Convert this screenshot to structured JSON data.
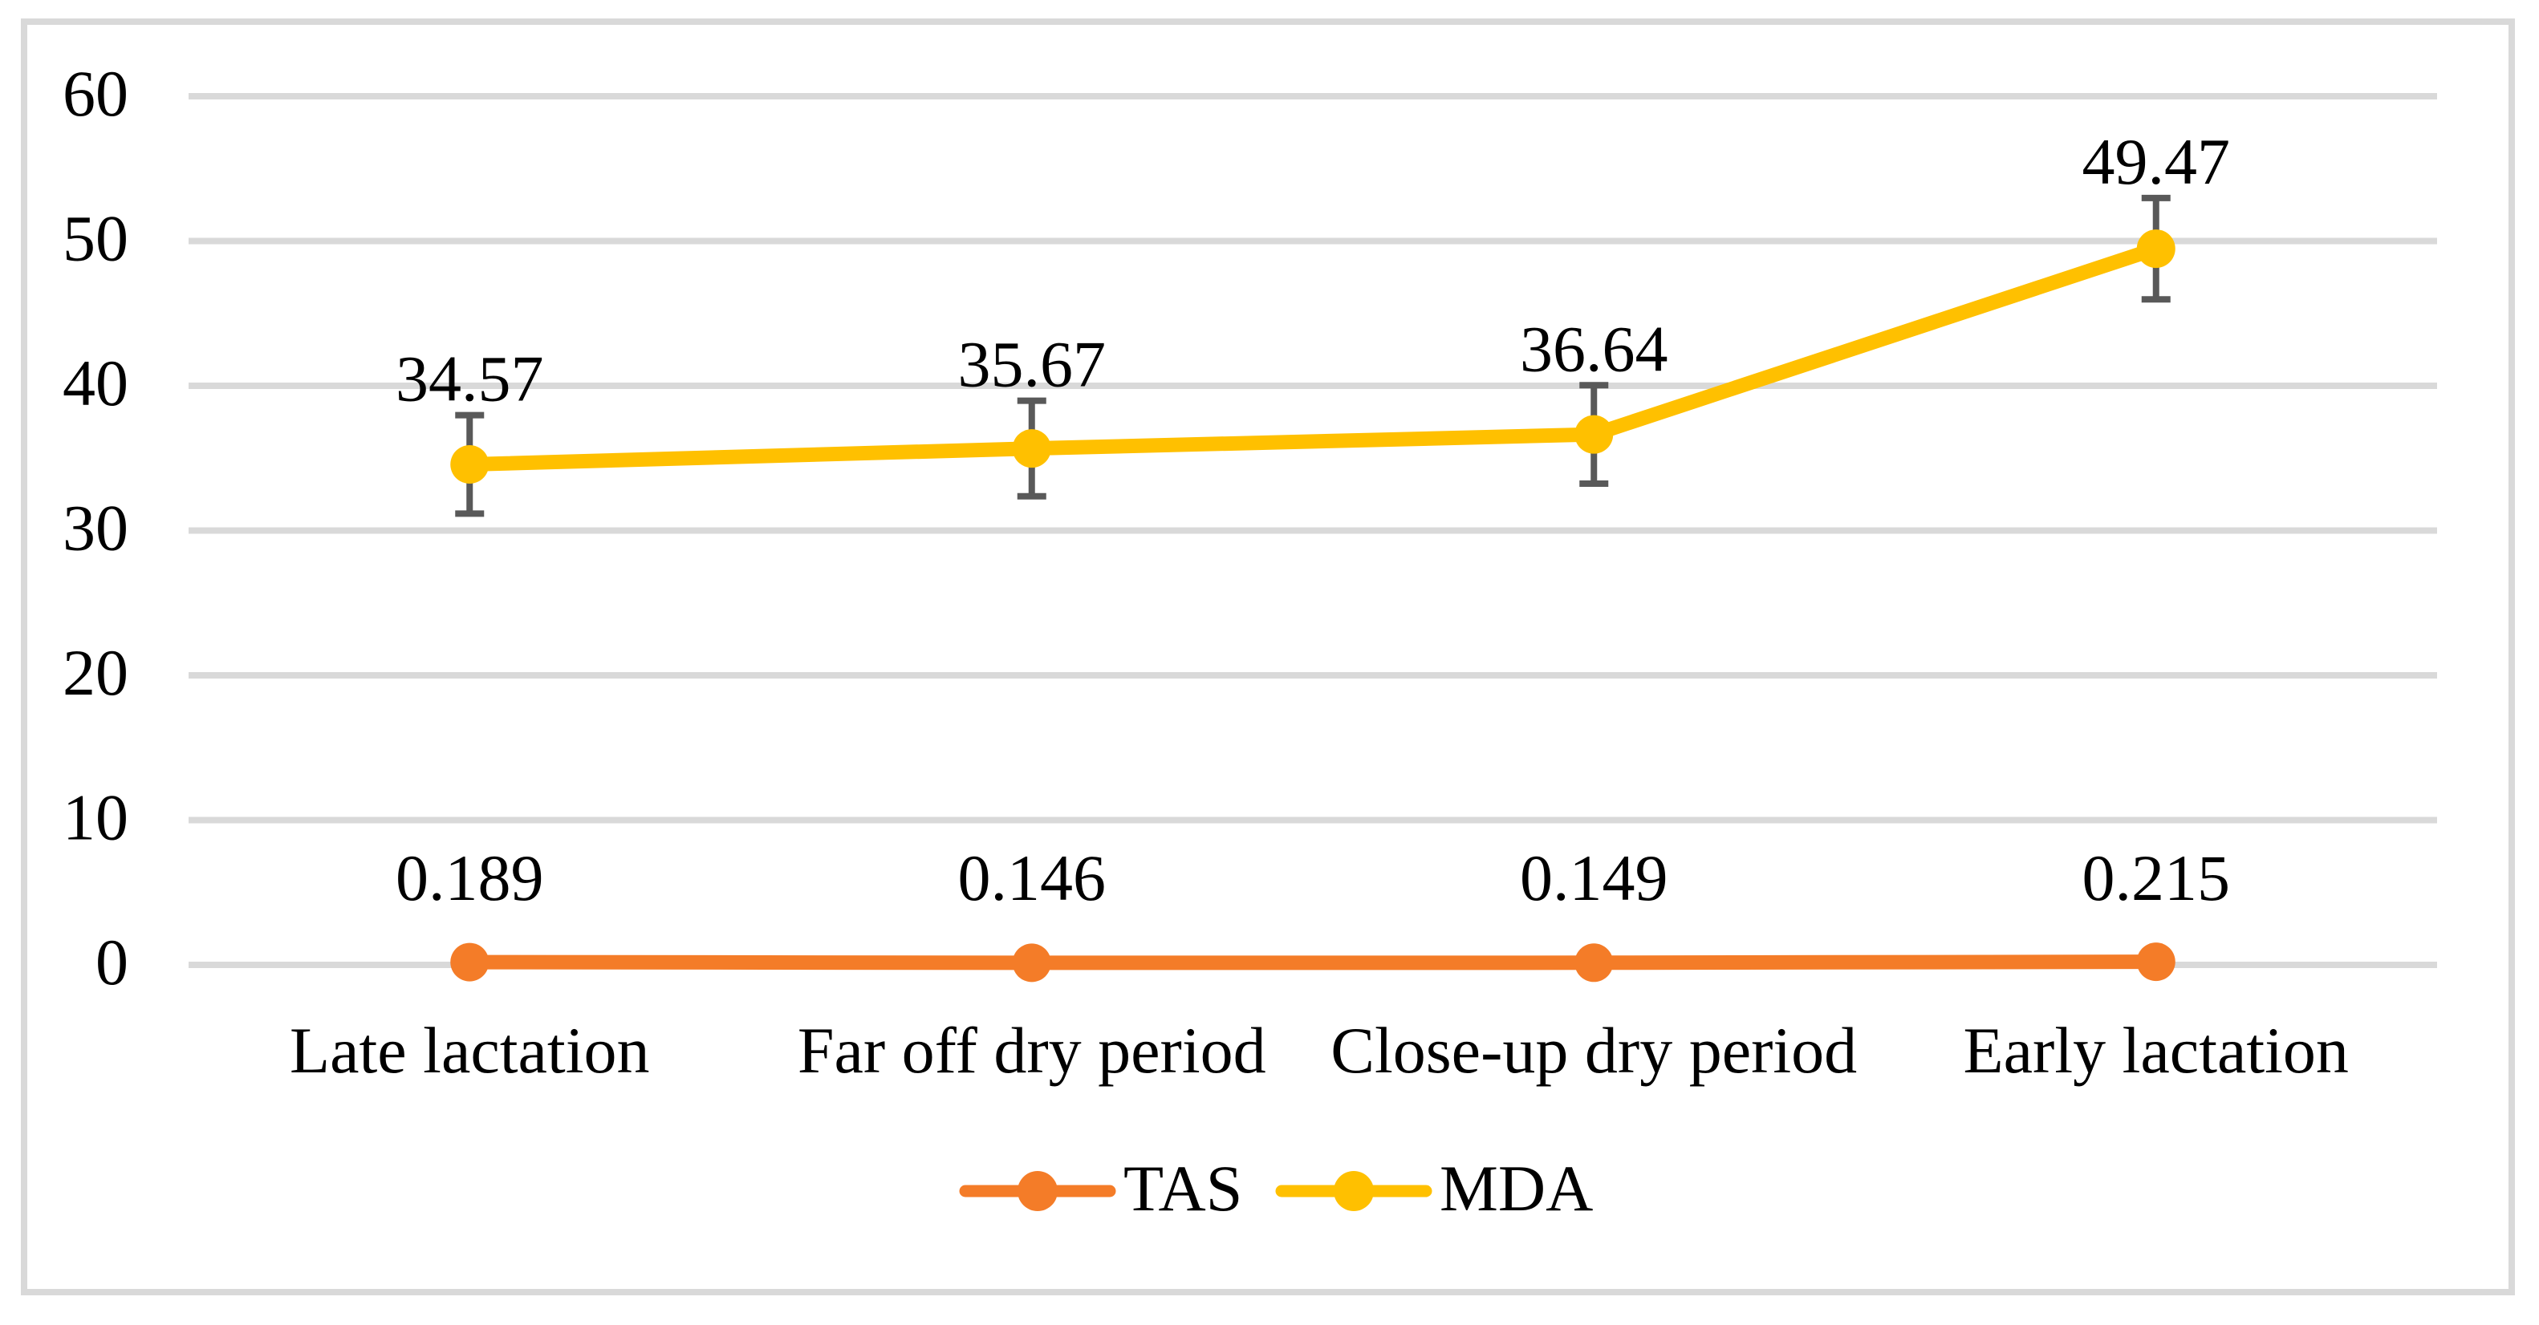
{
  "chart_data": {
    "type": "line",
    "title": "",
    "xlabel": "",
    "ylabel": "",
    "categories": [
      "Late lactation",
      "Far off dry period",
      "Close-up dry period",
      "Early lactation"
    ],
    "series": [
      {
        "name": "TAS",
        "color": "#F47C28",
        "values": [
          0.189,
          0.146,
          0.149,
          0.215
        ],
        "labels": [
          "0.189",
          "0.146",
          "0.149",
          "0.215"
        ],
        "error_bars": [
          0,
          0,
          0,
          0
        ]
      },
      {
        "name": "MDA",
        "color": "#FFC000",
        "values": [
          34.57,
          35.67,
          36.64,
          49.47
        ],
        "labels": [
          "34.57",
          "35.67",
          "36.64",
          "49.47"
        ],
        "error_bars": [
          3.4,
          3.3,
          3.4,
          3.5
        ]
      }
    ],
    "ylim": [
      0,
      60
    ],
    "yticks": [
      0,
      10,
      20,
      30,
      40,
      50,
      60
    ],
    "ytick_labels": [
      "0",
      "10",
      "20",
      "30",
      "40",
      "50",
      "60"
    ],
    "grid": true,
    "legend_position": "bottom-center",
    "marker": "circle",
    "error_bar_color": "#595959",
    "gridline_color": "#D9D9D9",
    "border_color": "#D9D9D9",
    "text_color": "#000000",
    "background": "#FFFFFF"
  }
}
